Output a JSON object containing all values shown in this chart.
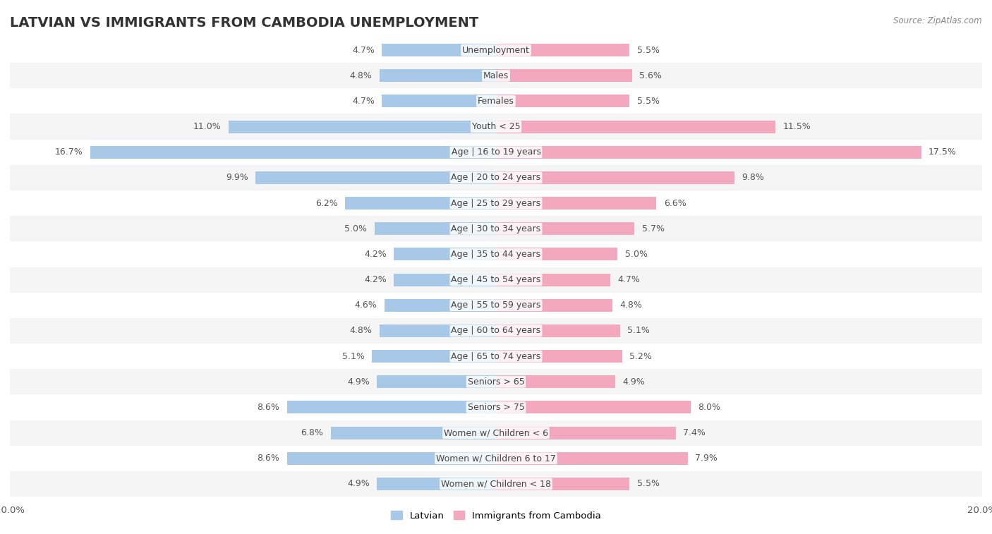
{
  "title": "LATVIAN VS IMMIGRANTS FROM CAMBODIA UNEMPLOYMENT",
  "source": "Source: ZipAtlas.com",
  "categories": [
    "Unemployment",
    "Males",
    "Females",
    "Youth < 25",
    "Age | 16 to 19 years",
    "Age | 20 to 24 years",
    "Age | 25 to 29 years",
    "Age | 30 to 34 years",
    "Age | 35 to 44 years",
    "Age | 45 to 54 years",
    "Age | 55 to 59 years",
    "Age | 60 to 64 years",
    "Age | 65 to 74 years",
    "Seniors > 65",
    "Seniors > 75",
    "Women w/ Children < 6",
    "Women w/ Children 6 to 17",
    "Women w/ Children < 18"
  ],
  "latvian": [
    4.7,
    4.8,
    4.7,
    11.0,
    16.7,
    9.9,
    6.2,
    5.0,
    4.2,
    4.2,
    4.6,
    4.8,
    5.1,
    4.9,
    8.6,
    6.8,
    8.6,
    4.9
  ],
  "cambodia": [
    5.5,
    5.6,
    5.5,
    11.5,
    17.5,
    9.8,
    6.6,
    5.7,
    5.0,
    4.7,
    4.8,
    5.1,
    5.2,
    4.9,
    8.0,
    7.4,
    7.9,
    5.5
  ],
  "latvian_color": "#a8c8e8",
  "cambodia_color": "#f4a8c0",
  "row_bg_even": "#f5f5f5",
  "row_bg_odd": "#ffffff",
  "axis_max": 20.0,
  "legend_latvian": "Latvian",
  "legend_cambodia": "Immigrants from Cambodia",
  "bar_height": 0.5,
  "title_fontsize": 14,
  "label_fontsize": 9,
  "value_fontsize": 9
}
